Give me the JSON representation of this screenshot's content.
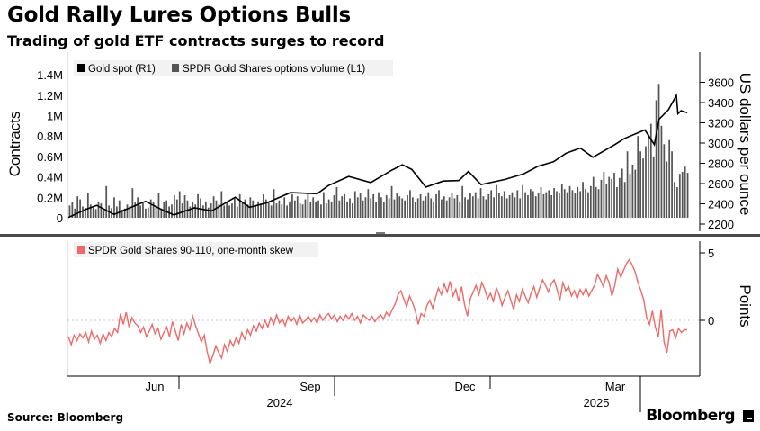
{
  "header": {
    "title": "Gold Rally Lures Options Bulls",
    "subtitle": "Trading of gold ETF contracts surges to record"
  },
  "footer": {
    "source": "Source: Bloomberg",
    "brand": "Bloomberg"
  },
  "colors": {
    "gold_spot": "#000000",
    "options_volume": "#555555",
    "skew": "#f06868",
    "divider": "#4a4a4a"
  },
  "chart_data": [
    {
      "type": "bar",
      "title": "",
      "ylabel_left": "Contracts",
      "ylabel_right": "US dollars per ounce",
      "legend": [
        "Gold spot (R1)",
        "SPDR Gold Shares options volume (L1)"
      ],
      "legend_placement": "top-left",
      "left_axis": {
        "ticks": [
          "0",
          "0.2M",
          "0.4M",
          "0.6M",
          "0.8M",
          "1M",
          "1.2M",
          "1.4M"
        ],
        "ylim": [
          0,
          1500000
        ]
      },
      "right_axis": {
        "ticks": [
          "2200",
          "2400",
          "2600",
          "2800",
          "3000",
          "3200",
          "3400",
          "3600"
        ],
        "ylim": [
          2200,
          3600
        ]
      },
      "x_range": [
        "2024-04-01",
        "2025-04-30"
      ],
      "series": [
        {
          "name": "Gold spot (R1)",
          "type": "line",
          "points": [
            [
              "2024-04-01",
              2265
            ],
            [
              "2024-04-12",
              2345
            ],
            [
              "2024-04-19",
              2385
            ],
            [
              "2024-04-30",
              2295
            ],
            [
              "2024-05-10",
              2360
            ],
            [
              "2024-05-20",
              2425
            ],
            [
              "2024-05-30",
              2345
            ],
            [
              "2024-06-07",
              2290
            ],
            [
              "2024-06-20",
              2360
            ],
            [
              "2024-07-01",
              2330
            ],
            [
              "2024-07-16",
              2465
            ],
            [
              "2024-07-25",
              2365
            ],
            [
              "2024-08-05",
              2410
            ],
            [
              "2024-08-20",
              2510
            ],
            [
              "2024-09-06",
              2500
            ],
            [
              "2024-09-13",
              2580
            ],
            [
              "2024-09-26",
              2670
            ],
            [
              "2024-10-10",
              2610
            ],
            [
              "2024-10-23",
              2730
            ],
            [
              "2024-10-30",
              2785
            ],
            [
              "2024-11-05",
              2740
            ],
            [
              "2024-11-14",
              2565
            ],
            [
              "2024-11-25",
              2625
            ],
            [
              "2024-12-05",
              2630
            ],
            [
              "2024-12-11",
              2720
            ],
            [
              "2024-12-19",
              2590
            ],
            [
              "2025-01-03",
              2640
            ],
            [
              "2025-01-15",
              2695
            ],
            [
              "2025-01-24",
              2770
            ],
            [
              "2025-02-03",
              2815
            ],
            [
              "2025-02-11",
              2900
            ],
            [
              "2025-02-20",
              2950
            ],
            [
              "2025-02-28",
              2860
            ],
            [
              "2025-03-14",
              2985
            ],
            [
              "2025-03-20",
              3045
            ],
            [
              "2025-04-02",
              3130
            ],
            [
              "2025-04-08",
              2985
            ],
            [
              "2025-04-11",
              3235
            ],
            [
              "2025-04-17",
              3330
            ],
            [
              "2025-04-22",
              3470
            ],
            [
              "2025-04-23",
              3290
            ],
            [
              "2025-04-25",
              3320
            ],
            [
              "2025-04-29",
              3300
            ]
          ]
        },
        {
          "name": "SPDR Gold Shares options volume (L1)",
          "type": "bar",
          "values": [
            120000,
            150000,
            90000,
            210000,
            180000,
            110000,
            95000,
            240000,
            130000,
            100000,
            85000,
            160000,
            140000,
            75000,
            310000,
            120000,
            95000,
            200000,
            110000,
            170000,
            80000,
            90000,
            130000,
            110000,
            290000,
            150000,
            200000,
            120000,
            140000,
            90000,
            100000,
            180000,
            160000,
            120000,
            240000,
            90000,
            150000,
            170000,
            110000,
            130000,
            220000,
            180000,
            260000,
            140000,
            220000,
            170000,
            110000,
            150000,
            130000,
            230000,
            190000,
            120000,
            160000,
            100000,
            140000,
            210000,
            170000,
            130000,
            260000,
            120000,
            160000,
            120000,
            140000,
            190000,
            110000,
            230000,
            150000,
            180000,
            130000,
            200000,
            170000,
            120000,
            160000,
            140000,
            230000,
            180000,
            150000,
            120000,
            280000,
            140000,
            170000,
            130000,
            200000,
            120000,
            160000,
            230000,
            170000,
            210000,
            140000,
            130000,
            180000,
            240000,
            150000,
            200000,
            160000,
            170000,
            130000,
            250000,
            140000,
            180000,
            160000,
            220000,
            300000,
            170000,
            210000,
            230000,
            160000,
            190000,
            140000,
            260000,
            200000,
            240000,
            170000,
            200000,
            280000,
            190000,
            230000,
            150000,
            250000,
            200000,
            160000,
            220000,
            190000,
            310000,
            180000,
            240000,
            210000,
            190000,
            170000,
            220000,
            270000,
            200000,
            150000,
            190000,
            230000,
            170000,
            210000,
            250000,
            190000,
            160000,
            230000,
            270000,
            180000,
            210000,
            170000,
            200000,
            240000,
            190000,
            220000,
            160000,
            310000,
            200000,
            180000,
            240000,
            210000,
            250000,
            190000,
            290000,
            210000,
            180000,
            230000,
            270000,
            200000,
            320000,
            240000,
            210000,
            260000,
            190000,
            220000,
            250000,
            200000,
            270000,
            190000,
            320000,
            250000,
            220000,
            280000,
            260000,
            210000,
            240000,
            300000,
            230000,
            250000,
            270000,
            220000,
            290000,
            260000,
            240000,
            330000,
            280000,
            250000,
            310000,
            270000,
            240000,
            300000,
            260000,
            350000,
            280000,
            250000,
            310000,
            400000,
            300000,
            280000,
            370000,
            450000,
            330000,
            400000,
            380000,
            440000,
            300000,
            390000,
            480000,
            350000,
            650000,
            430000,
            520000,
            470000,
            800000,
            650000,
            580000,
            700000,
            820000,
            920000,
            600000,
            1150000,
            1310000,
            900000,
            720000,
            550000,
            760000,
            650000,
            350000,
            300000,
            430000,
            450000,
            500000,
            440000
          ]
        }
      ]
    },
    {
      "type": "line",
      "ylabel": "Points",
      "legend": [
        "SPDR Gold Shares 90-110, one-month skew"
      ],
      "legend_placement": "top-left",
      "ticks": [
        "0",
        "5"
      ],
      "ylim": [
        -4.2,
        5.5
      ],
      "x_tick_labels": [
        "Jun",
        "Sep",
        "Dec",
        "Mar"
      ],
      "x_year_labels": [
        "2024",
        "2025"
      ],
      "series": [
        {
          "name": "SPDR Gold Shares 90-110, one-month skew",
          "values": [
            -1.2,
            -1.8,
            -1.1,
            -1.5,
            -1.0,
            -1.3,
            -0.9,
            -1.6,
            -0.8,
            -1.4,
            -1.1,
            -1.7,
            -1.0,
            -1.5,
            -0.9,
            -1.2,
            -0.6,
            -0.9,
            0.5,
            -0.3,
            0.6,
            -0.5,
            0.2,
            -0.2,
            -0.4,
            -0.9,
            -0.5,
            -1.2,
            -0.8,
            -0.3,
            -1.0,
            -0.6,
            -1.4,
            -0.9,
            -0.5,
            -1.2,
            -0.1,
            -0.8,
            -1.5,
            -0.3,
            -1.0,
            -0.2,
            -0.7,
            0.3,
            -0.4,
            -1.0,
            -1.6,
            -1.1,
            -2.3,
            -3.2,
            -2.6,
            -1.9,
            -2.4,
            -2.8,
            -1.8,
            -2.3,
            -1.5,
            -1.9,
            -1.3,
            -1.7,
            -0.9,
            -1.4,
            -0.7,
            -1.1,
            -0.4,
            -0.8,
            -0.2,
            -0.6,
            0.0,
            -0.5,
            0.2,
            -0.3,
            0.4,
            -0.2,
            0.1,
            -0.4,
            0.3,
            -0.1,
            0.2,
            -0.3,
            0.4,
            -0.2,
            0.0,
            0.3,
            -0.1,
            0.2,
            -0.2,
            0.4,
            0.0,
            0.3,
            0.5,
            0.1,
            0.4,
            -0.1,
            0.3,
            0.0,
            0.4,
            0.1,
            0.5,
            0.0,
            0.3,
            -0.2,
            0.4,
            0.2,
            0.0,
            0.3,
            -0.1,
            0.2,
            0.4,
            0.1,
            0.6,
            0.3,
            0.8,
            1.2,
            1.9,
            2.2,
            1.6,
            1.0,
            1.8,
            1.3,
            0.7,
            -0.3,
            0.5,
            0.3,
            1.1,
            1.5,
            0.9,
            1.7,
            2.4,
            1.9,
            2.7,
            2.1,
            2.9,
            1.8,
            2.3,
            1.4,
            2.5,
            1.2,
            0.3,
            1.6,
            2.1,
            2.6,
            1.9,
            2.8,
            2.3,
            1.6,
            2.0,
            1.4,
            2.4,
            1.9,
            1.1,
            1.7,
            2.2,
            1.5,
            0.8,
            1.9,
            1.4,
            2.3,
            1.8,
            1.3,
            2.0,
            2.5,
            1.7,
            2.4,
            3.0,
            2.6,
            2.1,
            2.7,
            3.0,
            2.3,
            1.5,
            2.8,
            2.2,
            2.5,
            1.8,
            2.2,
            1.6,
            2.3,
            1.9,
            2.4,
            1.8,
            2.2,
            2.6,
            3.4,
            3.0,
            2.5,
            3.3,
            2.8,
            1.8,
            2.6,
            3.8,
            3.2,
            3.7,
            4.2,
            4.5,
            4.1,
            3.6,
            2.8,
            2.2,
            1.5,
            0.2,
            -0.3,
            0.7,
            -0.5,
            -1.2,
            0.8,
            -1.6,
            -2.4,
            -0.8,
            -0.7,
            -1.3,
            -0.6,
            -0.9,
            -0.7,
            -0.7
          ]
        }
      ]
    }
  ]
}
